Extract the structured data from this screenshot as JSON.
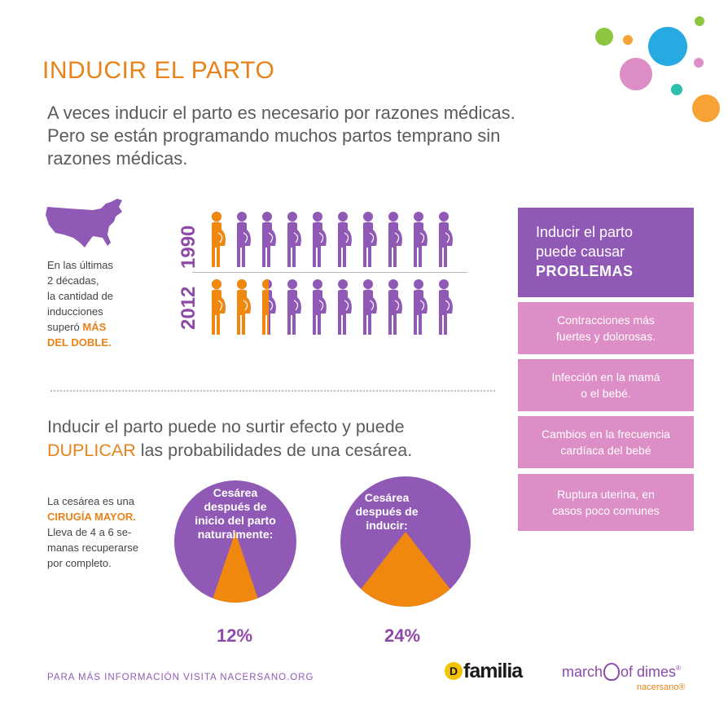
{
  "title": "INDUCIR EL PARTO",
  "intro": "A veces inducir el parto es necesario por razones médicas. Pero se están programando muchos partos temprano sin razones médicas.",
  "decades_note": {
    "line1": "En las últimas",
    "line2": "2 décadas,",
    "line3": "la cantidad de",
    "line4": "inducciones",
    "line5_prefix": "superó ",
    "line5_emph": "MÁS",
    "line6_emph": "DEL DOBLE."
  },
  "icons_chart": {
    "rows": [
      {
        "year": "1990",
        "induced_figures": 1,
        "total_figures": 10
      },
      {
        "year": "2012",
        "induced_figures": 2.5,
        "total_figures": 10
      }
    ],
    "colors": {
      "induced": "#f0870f",
      "other": "#9159b6"
    }
  },
  "statement": {
    "part1": "Inducir el parto puede no surtir efecto y puede",
    "emph": "DUPLICAR",
    "part2": " las probabilidades de una cesárea."
  },
  "cesarea_note": {
    "line1": "La cesárea es una",
    "emph": "CIRUGÍA MAYOR.",
    "line3": "Lleva de 4 a 6 se-",
    "line4": "manas recuperarse",
    "line5": "por completo."
  },
  "pies": [
    {
      "label_l1": "Cesárea",
      "label_l2": "después de",
      "label_l3": "inicio del parto",
      "label_l4": "naturalmente:",
      "percent": "12%",
      "value": 12
    },
    {
      "label_l1": "Cesárea",
      "label_l2": "después de",
      "label_l3": "inducir:",
      "percent": "24%",
      "value": 24
    }
  ],
  "problems": {
    "heading_l1": "Inducir el parto",
    "heading_l2": "puede causar",
    "heading_l3": "PROBLEMAS",
    "items": [
      {
        "l1": "Contracciones más",
        "l2": "fuertes y dolorosas."
      },
      {
        "l1": "Infección en la mamá",
        "l2": "o el bebé."
      },
      {
        "l1": "Cambios en la frecuencia",
        "l2": "cardíaca del bebé"
      },
      {
        "l1": "Ruptura uterina, en",
        "l2": "casos poco comunes"
      }
    ]
  },
  "footer": "PARA MÁS INFORMACIÓN VISITA NACERSANO.ORG",
  "logos": {
    "familia_d": "D",
    "familia": "familia",
    "march_part1": "march",
    "march_part2": "of dimes",
    "march_reg": "®",
    "nacersano": "nacersano®"
  },
  "colors": {
    "orange": "#e8831b",
    "purple": "#9159b6",
    "pink": "#dd8ec6"
  }
}
